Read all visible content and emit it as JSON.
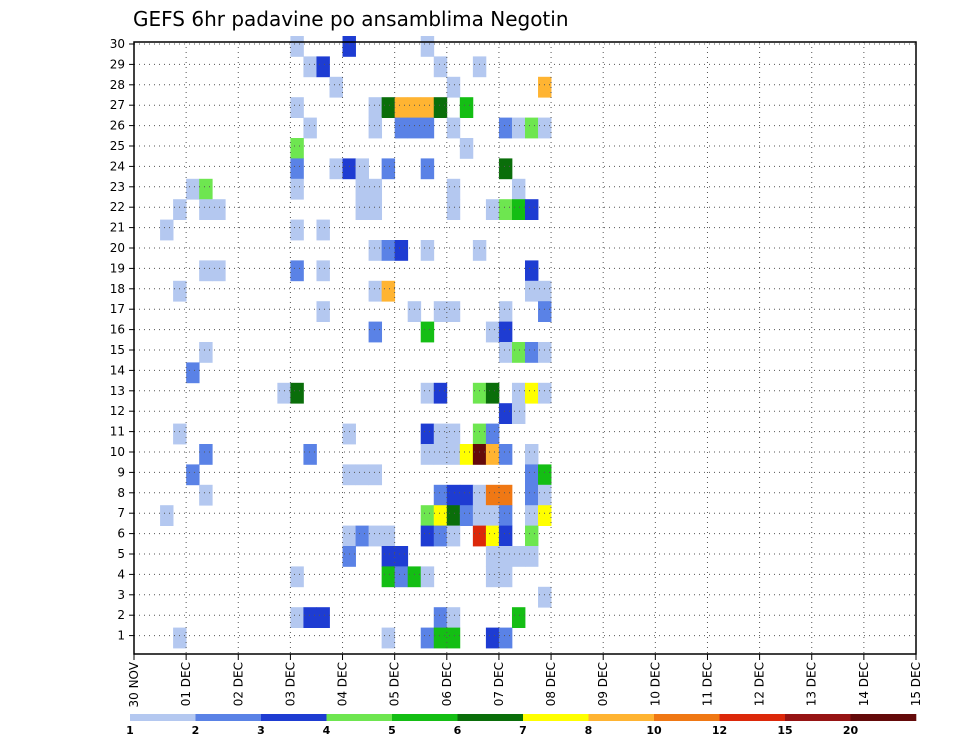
{
  "chart_data": {
    "type": "heatmap",
    "title": "GEFS 6hr padavine po ansamblima Negotin",
    "xlabel": "",
    "ylabel": "",
    "x_tick_labels": [
      "30 NOV",
      "01 DEC",
      "02 DEC",
      "03 DEC",
      "04 DEC",
      "05 DEC",
      "06 DEC",
      "07 DEC",
      "08 DEC",
      "09 DEC",
      "10 DEC",
      "11 DEC",
      "12 DEC",
      "13 DEC",
      "14 DEC",
      "15 DEC"
    ],
    "y_tick_labels": [
      "1",
      "2",
      "3",
      "4",
      "5",
      "6",
      "7",
      "8",
      "9",
      "10",
      "11",
      "12",
      "13",
      "14",
      "15",
      "16",
      "17",
      "18",
      "19",
      "20",
      "21",
      "22",
      "23",
      "24",
      "25",
      "26",
      "27",
      "28",
      "29",
      "30"
    ],
    "x_step_hours": 6,
    "y_range": [
      0,
      30
    ],
    "grid": true,
    "colorbar_labels": [
      "1",
      "2",
      "3",
      "4",
      "5",
      "6",
      "7",
      "8",
      "10",
      "12",
      "15",
      "20"
    ],
    "colorbar_colors": [
      "#b4c8f0",
      "#5a82e6",
      "#1e3cd2",
      "#6ee650",
      "#14be14",
      "#0a6e0a",
      "#ffff00",
      "#ffb432",
      "#f07814",
      "#dc280a",
      "#961414",
      "#640a0a"
    ],
    "cells": [
      [
        10,
        30,
        0
      ],
      [
        14,
        30,
        2
      ],
      [
        20,
        30,
        0
      ],
      [
        11,
        29,
        0
      ],
      [
        12,
        29,
        2
      ],
      [
        21,
        29,
        0
      ],
      [
        24,
        29,
        0
      ],
      [
        13,
        28,
        0
      ],
      [
        22,
        28,
        0
      ],
      [
        29,
        28,
        7
      ],
      [
        10,
        27,
        0
      ],
      [
        16,
        27,
        0
      ],
      [
        17,
        27,
        5
      ],
      [
        18,
        27,
        7
      ],
      [
        19,
        27,
        7
      ],
      [
        20,
        27,
        7
      ],
      [
        21,
        27,
        5
      ],
      [
        23,
        27,
        4
      ],
      [
        11,
        26,
        0
      ],
      [
        16,
        26,
        0
      ],
      [
        18,
        26,
        1
      ],
      [
        19,
        26,
        1
      ],
      [
        20,
        26,
        1
      ],
      [
        22,
        26,
        0
      ],
      [
        26,
        26,
        1
      ],
      [
        27,
        26,
        0
      ],
      [
        28,
        26,
        3
      ],
      [
        29,
        26,
        0
      ],
      [
        10,
        25,
        3
      ],
      [
        23,
        25,
        0
      ],
      [
        10,
        24,
        1
      ],
      [
        13,
        24,
        0
      ],
      [
        14,
        24,
        2
      ],
      [
        15,
        24,
        0
      ],
      [
        17,
        24,
        1
      ],
      [
        20,
        24,
        1
      ],
      [
        26,
        24,
        5
      ],
      [
        2,
        23,
        0
      ],
      [
        3,
        23,
        3
      ],
      [
        10,
        23,
        0
      ],
      [
        15,
        23,
        0
      ],
      [
        16,
        23,
        0
      ],
      [
        22,
        23,
        0
      ],
      [
        27,
        23,
        0
      ],
      [
        1,
        22,
        0
      ],
      [
        3,
        22,
        0
      ],
      [
        4,
        22,
        0
      ],
      [
        15,
        22,
        0
      ],
      [
        16,
        22,
        0
      ],
      [
        22,
        22,
        0
      ],
      [
        25,
        22,
        0
      ],
      [
        26,
        22,
        3
      ],
      [
        27,
        22,
        4
      ],
      [
        28,
        22,
        2
      ],
      [
        0,
        21,
        0
      ],
      [
        10,
        21,
        0
      ],
      [
        12,
        21,
        0
      ],
      [
        16,
        20,
        0
      ],
      [
        17,
        20,
        1
      ],
      [
        18,
        20,
        2
      ],
      [
        20,
        20,
        0
      ],
      [
        24,
        20,
        0
      ],
      [
        3,
        19,
        0
      ],
      [
        4,
        19,
        0
      ],
      [
        10,
        19,
        1
      ],
      [
        12,
        19,
        0
      ],
      [
        28,
        19,
        2
      ],
      [
        1,
        18,
        0
      ],
      [
        16,
        18,
        0
      ],
      [
        17,
        18,
        7
      ],
      [
        28,
        18,
        0
      ],
      [
        29,
        18,
        0
      ],
      [
        12,
        17,
        0
      ],
      [
        19,
        17,
        0
      ],
      [
        21,
        17,
        0
      ],
      [
        22,
        17,
        0
      ],
      [
        26,
        17,
        0
      ],
      [
        29,
        17,
        1
      ],
      [
        16,
        16,
        1
      ],
      [
        20,
        16,
        4
      ],
      [
        25,
        16,
        0
      ],
      [
        26,
        16,
        2
      ],
      [
        3,
        15,
        0
      ],
      [
        26,
        15,
        0
      ],
      [
        27,
        15,
        3
      ],
      [
        28,
        15,
        1
      ],
      [
        29,
        15,
        0
      ],
      [
        2,
        14,
        1
      ],
      [
        9,
        13,
        0
      ],
      [
        10,
        13,
        5
      ],
      [
        20,
        13,
        0
      ],
      [
        21,
        13,
        2
      ],
      [
        24,
        13,
        3
      ],
      [
        25,
        13,
        5
      ],
      [
        27,
        13,
        0
      ],
      [
        28,
        13,
        6
      ],
      [
        29,
        13,
        0
      ],
      [
        26,
        12,
        2
      ],
      [
        27,
        12,
        0
      ],
      [
        1,
        11,
        0
      ],
      [
        14,
        11,
        0
      ],
      [
        20,
        11,
        2
      ],
      [
        21,
        11,
        0
      ],
      [
        22,
        11,
        0
      ],
      [
        24,
        11,
        3
      ],
      [
        25,
        11,
        1
      ],
      [
        3,
        10,
        1
      ],
      [
        11,
        10,
        1
      ],
      [
        20,
        10,
        0
      ],
      [
        21,
        10,
        0
      ],
      [
        22,
        10,
        0
      ],
      [
        23,
        10,
        6
      ],
      [
        24,
        10,
        11
      ],
      [
        25,
        10,
        7
      ],
      [
        26,
        10,
        1
      ],
      [
        28,
        10,
        0
      ],
      [
        2,
        9,
        1
      ],
      [
        14,
        9,
        0
      ],
      [
        15,
        9,
        0
      ],
      [
        16,
        9,
        0
      ],
      [
        28,
        9,
        1
      ],
      [
        29,
        9,
        4
      ],
      [
        3,
        8,
        0
      ],
      [
        21,
        8,
        1
      ],
      [
        22,
        8,
        2
      ],
      [
        23,
        8,
        2
      ],
      [
        24,
        8,
        0
      ],
      [
        25,
        8,
        8
      ],
      [
        26,
        8,
        8
      ],
      [
        28,
        8,
        1
      ],
      [
        29,
        8,
        0
      ],
      [
        0,
        7,
        0
      ],
      [
        20,
        7,
        3
      ],
      [
        21,
        7,
        6
      ],
      [
        22,
        7,
        5
      ],
      [
        23,
        7,
        1
      ],
      [
        24,
        7,
        0
      ],
      [
        25,
        7,
        0
      ],
      [
        26,
        7,
        1
      ],
      [
        28,
        7,
        0
      ],
      [
        29,
        7,
        6
      ],
      [
        14,
        6,
        0
      ],
      [
        15,
        6,
        1
      ],
      [
        16,
        6,
        0
      ],
      [
        17,
        6,
        0
      ],
      [
        20,
        6,
        2
      ],
      [
        21,
        6,
        1
      ],
      [
        22,
        6,
        0
      ],
      [
        24,
        6,
        9
      ],
      [
        25,
        6,
        6
      ],
      [
        26,
        6,
        2
      ],
      [
        28,
        6,
        3
      ],
      [
        14,
        5,
        1
      ],
      [
        17,
        5,
        2
      ],
      [
        18,
        5,
        2
      ],
      [
        25,
        5,
        0
      ],
      [
        26,
        5,
        0
      ],
      [
        27,
        5,
        0
      ],
      [
        28,
        5,
        0
      ],
      [
        10,
        4,
        0
      ],
      [
        17,
        4,
        4
      ],
      [
        18,
        4,
        1
      ],
      [
        19,
        4,
        4
      ],
      [
        20,
        4,
        0
      ],
      [
        25,
        4,
        0
      ],
      [
        26,
        4,
        0
      ],
      [
        29,
        3,
        0
      ],
      [
        10,
        2,
        0
      ],
      [
        11,
        2,
        2
      ],
      [
        12,
        2,
        2
      ],
      [
        21,
        2,
        1
      ],
      [
        22,
        2,
        0
      ],
      [
        27,
        2,
        4
      ],
      [
        1,
        1,
        0
      ],
      [
        17,
        1,
        0
      ],
      [
        20,
        1,
        1
      ],
      [
        21,
        1,
        4
      ],
      [
        22,
        1,
        4
      ],
      [
        25,
        1,
        2
      ],
      [
        26,
        1,
        1
      ]
    ]
  }
}
